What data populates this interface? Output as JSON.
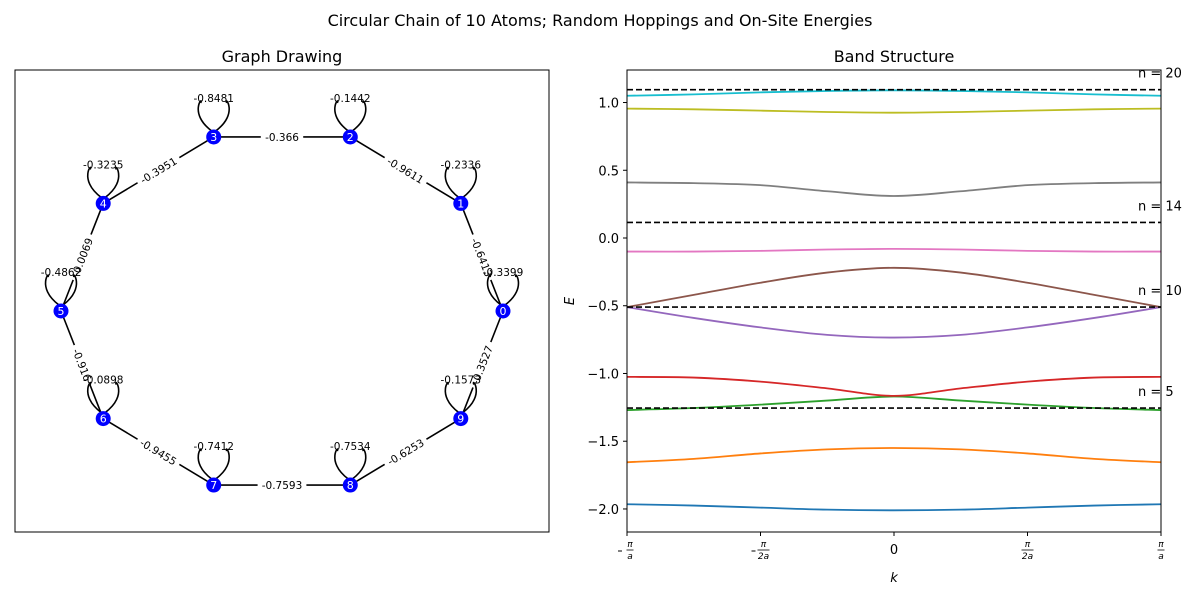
{
  "suptitle": "Circular Chain of 10 Atoms; Random Hoppings and On-Site Energies",
  "graph": {
    "title": "Graph Drawing",
    "nodes": [
      {
        "id": "0",
        "onsite": "-0.3399"
      },
      {
        "id": "1",
        "onsite": "-0.2336"
      },
      {
        "id": "2",
        "onsite": "-0.1442"
      },
      {
        "id": "3",
        "onsite": "-0.8481"
      },
      {
        "id": "4",
        "onsite": "-0.3235"
      },
      {
        "id": "5",
        "onsite": "-0.4862"
      },
      {
        "id": "6",
        "onsite": "-0.0898"
      },
      {
        "id": "7",
        "onsite": "-0.7412"
      },
      {
        "id": "8",
        "onsite": "-0.7534"
      },
      {
        "id": "9",
        "onsite": "-0.1573"
      }
    ],
    "edges": [
      {
        "from": 0,
        "to": 1,
        "label": "-0.6413"
      },
      {
        "from": 1,
        "to": 2,
        "label": "-0.9611"
      },
      {
        "from": 2,
        "to": 3,
        "label": "-0.366"
      },
      {
        "from": 3,
        "to": 4,
        "label": "-0.3951"
      },
      {
        "from": 4,
        "to": 5,
        "label": "-0.0069"
      },
      {
        "from": 5,
        "to": 6,
        "label": "-0.916"
      },
      {
        "from": 6,
        "to": 7,
        "label": "-0.9455"
      },
      {
        "from": 7,
        "to": 8,
        "label": "-0.7593"
      },
      {
        "from": 8,
        "to": 9,
        "label": "-0.6253"
      },
      {
        "from": 9,
        "to": 0,
        "label": "-0.3527"
      }
    ],
    "node_color": "#0000ff"
  },
  "chart_data": {
    "type": "line",
    "title": "Band Structure",
    "xlabel": "k",
    "ylabel": "E",
    "xlim": [
      -3.14159,
      3.14159
    ],
    "ylim": [
      -2.17,
      1.24
    ],
    "x_ticks": [
      {
        "value": -3.14159,
        "num": "π",
        "den": "a",
        "neg": true
      },
      {
        "value": -1.5708,
        "num": "π",
        "den": "2a",
        "neg": true
      },
      {
        "value": 0,
        "plain": "0"
      },
      {
        "value": 1.5708,
        "num": "π",
        "den": "2a",
        "neg": false
      },
      {
        "value": 3.14159,
        "num": "π",
        "den": "a",
        "neg": false
      }
    ],
    "y_ticks": [
      -2.0,
      -1.5,
      -1.0,
      -0.5,
      0.0,
      0.5,
      1.0
    ],
    "y_tick_labels": [
      "−2.0",
      "−1.5",
      "−1.0",
      "−0.5",
      "0.0",
      "0.5",
      "1.0"
    ],
    "x": [
      -3.14159,
      -2.35619,
      -1.5708,
      -0.7854,
      0,
      0.7854,
      1.5708,
      2.35619,
      3.14159
    ],
    "series": [
      {
        "values": [
          -1.965,
          -1.975,
          -1.99,
          -2.005,
          -2.01,
          -2.005,
          -1.99,
          -1.975,
          -1.965
        ],
        "color": "#1f77b4"
      },
      {
        "values": [
          -1.655,
          -1.63,
          -1.59,
          -1.56,
          -1.55,
          -1.56,
          -1.59,
          -1.63,
          -1.655
        ],
        "color": "#ff7f0e"
      },
      {
        "values": [
          -1.27,
          -1.255,
          -1.23,
          -1.2,
          -1.17,
          -1.2,
          -1.23,
          -1.255,
          -1.27
        ],
        "color": "#2ca02c"
      },
      {
        "values": [
          -1.025,
          -1.03,
          -1.06,
          -1.11,
          -1.165,
          -1.11,
          -1.06,
          -1.03,
          -1.025
        ],
        "color": "#d62728"
      },
      {
        "values": [
          -0.51,
          -0.59,
          -0.66,
          -0.715,
          -0.735,
          -0.715,
          -0.66,
          -0.59,
          -0.51
        ],
        "color": "#9467bd"
      },
      {
        "values": [
          -0.51,
          -0.42,
          -0.33,
          -0.255,
          -0.22,
          -0.255,
          -0.33,
          -0.42,
          -0.51
        ],
        "color": "#8c564b"
      },
      {
        "values": [
          -0.1,
          -0.1,
          -0.095,
          -0.085,
          -0.08,
          -0.085,
          -0.095,
          -0.1,
          -0.1
        ],
        "color": "#e377c2"
      },
      {
        "values": [
          0.41,
          0.405,
          0.39,
          0.345,
          0.31,
          0.345,
          0.39,
          0.405,
          0.41
        ],
        "color": "#7f7f7f"
      },
      {
        "values": [
          0.955,
          0.95,
          0.94,
          0.93,
          0.925,
          0.93,
          0.94,
          0.95,
          0.955
        ],
        "color": "#bcbd22"
      },
      {
        "values": [
          1.05,
          1.06,
          1.075,
          1.085,
          1.09,
          1.085,
          1.075,
          1.06,
          1.05
        ],
        "color": "#17becf"
      }
    ],
    "hlines": [
      {
        "y": 1.095,
        "label": "n = 20"
      },
      {
        "y": 0.115,
        "label": "n = 14"
      },
      {
        "y": -0.51,
        "label": "n = 10"
      },
      {
        "y": -1.255,
        "label": "n = 5"
      }
    ]
  }
}
